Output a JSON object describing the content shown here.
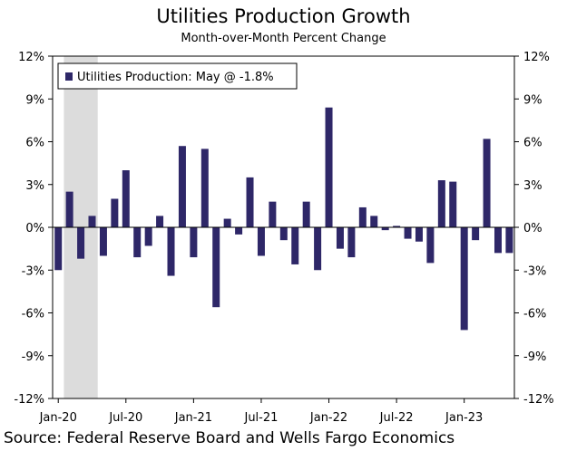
{
  "title": "Utilities Production Growth",
  "subtitle": "Month-over-Month Percent Change",
  "source": "Source: Federal Reserve Board and Wells Fargo Economics",
  "chart_data": {
    "type": "bar",
    "color": "#2e2768",
    "shading_color": "#dcdcdc",
    "legend": "Utilities Production: May @ -1.8%",
    "legend_position": "top-left",
    "ylim": [
      -12,
      12
    ],
    "y_ticks": [
      12,
      9,
      6,
      3,
      0,
      -3,
      -6,
      -9,
      -12
    ],
    "y_tick_labels": [
      "12%",
      "9%",
      "6%",
      "3%",
      "0%",
      "-3%",
      "-6%",
      "-9%",
      "-12%"
    ],
    "x_tick_labels": [
      "Jan-20",
      "Jul-20",
      "Jan-21",
      "Jul-21",
      "Jan-22",
      "Jul-22",
      "Jan-23"
    ],
    "recession_shading": [
      "2020-02",
      "2020-04"
    ],
    "categories": [
      "2020-01",
      "2020-02",
      "2020-03",
      "2020-04",
      "2020-05",
      "2020-06",
      "2020-07",
      "2020-08",
      "2020-09",
      "2020-10",
      "2020-11",
      "2020-12",
      "2021-01",
      "2021-02",
      "2021-03",
      "2021-04",
      "2021-05",
      "2021-06",
      "2021-07",
      "2021-08",
      "2021-09",
      "2021-10",
      "2021-11",
      "2021-12",
      "2022-01",
      "2022-02",
      "2022-03",
      "2022-04",
      "2022-05",
      "2022-06",
      "2022-07",
      "2022-08",
      "2022-09",
      "2022-10",
      "2022-11",
      "2022-12",
      "2023-01",
      "2023-02",
      "2023-03",
      "2023-04",
      "2023-05"
    ],
    "values": [
      -3.0,
      2.5,
      -2.2,
      0.8,
      -2.0,
      2.0,
      4.0,
      -2.1,
      -1.3,
      0.8,
      -3.4,
      5.7,
      -2.1,
      5.5,
      -5.6,
      0.6,
      -0.5,
      3.5,
      -2.0,
      1.8,
      -0.9,
      -2.6,
      1.8,
      -3.0,
      8.4,
      -1.5,
      -2.1,
      1.4,
      0.8,
      -0.2,
      0.1,
      -0.8,
      -1.0,
      -2.5,
      3.3,
      3.2,
      -7.2,
      -0.9,
      6.2,
      -1.8,
      -1.8
    ]
  }
}
